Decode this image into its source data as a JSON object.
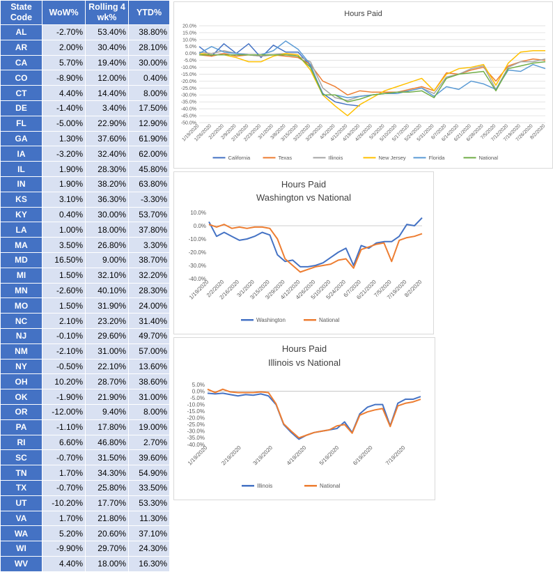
{
  "table": {
    "headers": [
      "State Code",
      "WoW%",
      "Rolling 4 wk%",
      "YTD%"
    ],
    "header_lines": [
      [
        "State",
        "Code"
      ],
      [
        "WoW%"
      ],
      [
        "Rolling 4",
        "wk%"
      ],
      [
        "YTD%"
      ]
    ],
    "rows": [
      [
        "AL",
        "-2.70%",
        "53.40%",
        "38.80%"
      ],
      [
        "AR",
        "2.00%",
        "30.40%",
        "28.10%"
      ],
      [
        "CA",
        "5.70%",
        "19.40%",
        "30.00%"
      ],
      [
        "CO",
        "-8.90%",
        "12.00%",
        "0.40%"
      ],
      [
        "CT",
        "4.40%",
        "14.40%",
        "8.00%"
      ],
      [
        "DE",
        "-1.40%",
        "3.40%",
        "17.50%"
      ],
      [
        "FL",
        "-5.00%",
        "22.90%",
        "12.90%"
      ],
      [
        "GA",
        "1.30%",
        "37.60%",
        "61.90%"
      ],
      [
        "IA",
        "-3.20%",
        "32.40%",
        "62.00%"
      ],
      [
        "IL",
        "1.90%",
        "28.30%",
        "45.80%"
      ],
      [
        "IN",
        "1.90%",
        "38.20%",
        "63.80%"
      ],
      [
        "KS",
        "3.10%",
        "36.30%",
        "-3.30%"
      ],
      [
        "KY",
        "0.40%",
        "30.00%",
        "53.70%"
      ],
      [
        "LA",
        "1.00%",
        "18.00%",
        "37.80%"
      ],
      [
        "MA",
        "3.50%",
        "26.80%",
        "3.30%"
      ],
      [
        "MD",
        "16.50%",
        "9.00%",
        "38.70%"
      ],
      [
        "MI",
        "1.50%",
        "32.10%",
        "32.20%"
      ],
      [
        "MN",
        "-2.60%",
        "40.10%",
        "28.30%"
      ],
      [
        "MO",
        "1.50%",
        "31.90%",
        "24.00%"
      ],
      [
        "NC",
        "2.10%",
        "23.20%",
        "31.40%"
      ],
      [
        "NJ",
        "-0.10%",
        "29.60%",
        "49.70%"
      ],
      [
        "NM",
        "-2.10%",
        "31.00%",
        "57.00%"
      ],
      [
        "NY",
        "-0.50%",
        "22.10%",
        "13.60%"
      ],
      [
        "OH",
        "10.20%",
        "28.70%",
        "38.60%"
      ],
      [
        "OK",
        "-1.90%",
        "21.90%",
        "31.00%"
      ],
      [
        "OR",
        "-12.00%",
        "9.40%",
        "8.00%"
      ],
      [
        "PA",
        "-1.10%",
        "17.80%",
        "19.00%"
      ],
      [
        "RI",
        "6.60%",
        "46.80%",
        "2.70%"
      ],
      [
        "SC",
        "-0.70%",
        "31.50%",
        "39.60%"
      ],
      [
        "TN",
        "1.70%",
        "34.30%",
        "54.90%"
      ],
      [
        "TX",
        "-0.70%",
        "25.80%",
        "33.50%"
      ],
      [
        "UT",
        "-10.20%",
        "17.70%",
        "53.30%"
      ],
      [
        "VA",
        "1.70%",
        "21.80%",
        "11.30%"
      ],
      [
        "WA",
        "5.20%",
        "20.60%",
        "37.10%"
      ],
      [
        "WI",
        "-9.90%",
        "29.70%",
        "24.30%"
      ],
      [
        "WV",
        "4.40%",
        "18.00%",
        "16.30%"
      ]
    ]
  },
  "chart_data": [
    {
      "type": "line",
      "title": "Hours Paid",
      "x": [
        "1/19/2020",
        "1/26/2020",
        "2/2/2020",
        "2/9/2020",
        "2/16/2020",
        "2/23/2020",
        "3/1/2020",
        "3/8/2020",
        "3/15/2020",
        "3/22/2020",
        "3/29/2020",
        "4/5/2020",
        "4/12/2020",
        "4/19/2020",
        "4/26/2020",
        "5/3/2020",
        "5/10/2020",
        "5/17/2020",
        "5/24/2020",
        "5/31/2020",
        "6/7/2020",
        "6/14/2020",
        "6/21/2020",
        "6/28/2020",
        "7/5/2020",
        "7/12/2020",
        "7/19/2020",
        "7/26/2020",
        "8/2/2020"
      ],
      "xticks": [
        "1/19/2020",
        "1/26/2020",
        "2/2/2020",
        "2/9/2020",
        "2/16/2020",
        "2/23/2020",
        "3/1/2020",
        "3/8/2020",
        "3/15/2020",
        "3/22/2020",
        "3/29/2020",
        "4/5/2020",
        "4/12/2020",
        "4/19/2020",
        "4/26/2020",
        "5/3/2020",
        "5/10/2020",
        "5/17/2020",
        "5/24/2020",
        "5/31/2020",
        "6/7/2020",
        "6/14/2020",
        "6/21/2020",
        "6/28/2020",
        "7/5/2020",
        "7/12/2020",
        "7/19/2020",
        "7/26/2020",
        "8/2/2020"
      ],
      "ylim": [
        -50,
        20
      ],
      "yticks": [
        20,
        15,
        10,
        5,
        0,
        -5,
        -10,
        -15,
        -20,
        -25,
        -30,
        -35,
        -40,
        -45,
        -50
      ],
      "ytick_labels": [
        "20.0%",
        "15.0%",
        "10.0%",
        "5.0%",
        "0.0%",
        "-5.0%",
        "-10.0%",
        "-15.0%",
        "-20.0%",
        "-25.0%",
        "-30.0%",
        "-35.0%",
        "-40.0%",
        "-45.0%",
        "-50.0%"
      ],
      "grid": true,
      "legend": "bottom",
      "series": [
        {
          "name": "California",
          "color": "#4472c4",
          "values": [
            5,
            -2,
            7,
            0,
            7,
            -3,
            6,
            1,
            1,
            -9,
            -29,
            -35,
            -37,
            -38,
            null,
            null,
            null,
            null,
            null,
            null,
            null,
            null,
            null,
            null,
            null,
            null,
            null,
            null,
            null
          ]
        },
        {
          "name": "Texas",
          "color": "#ed7d31",
          "values": [
            -1,
            -2,
            0,
            -2,
            -1,
            -2,
            -1,
            -2,
            -3,
            -8,
            -20,
            -24,
            -30,
            -27,
            -28,
            -28,
            -28,
            -26,
            -24,
            -27,
            -14,
            -15,
            -12,
            -10,
            -20,
            -9,
            -6,
            -4,
            -5
          ]
        },
        {
          "name": "Illinois",
          "color": "#a5a5a5",
          "values": [
            1,
            0,
            2,
            0,
            -1,
            -2,
            -1,
            0,
            -2,
            -6,
            -25,
            -32,
            -34,
            -31,
            -30,
            -29,
            -28,
            -27,
            -25,
            -29,
            -17,
            -15,
            -11,
            -9,
            -26,
            -10,
            -6,
            -6,
            -4
          ]
        },
        {
          "name": "New Jersey",
          "color": "#ffc000",
          "values": [
            0,
            -1,
            -1,
            -3,
            -6,
            -6,
            -2,
            0,
            -1,
            -12,
            -30,
            -38,
            -45,
            -37,
            -32,
            -27,
            -24,
            -21,
            -18,
            -27,
            -15,
            -11,
            -10,
            -8,
            -23,
            -7,
            1,
            2,
            2
          ]
        },
        {
          "name": "Florida",
          "color": "#5b9bd5",
          "values": [
            0,
            5,
            1,
            0,
            -1,
            -1,
            2,
            9,
            3,
            -8,
            -30,
            -30,
            -32,
            -31,
            -30,
            -29,
            -29,
            -27,
            -25,
            -31,
            -24,
            -26,
            -20,
            -22,
            -26,
            -12,
            -13,
            -8,
            -11
          ]
        },
        {
          "name": "National",
          "color": "#70ad47",
          "values": [
            -1,
            -1,
            -1,
            -1,
            -1,
            -1,
            -1,
            -1,
            -2,
            -10,
            -30,
            -30,
            -35,
            -33,
            -30,
            -29,
            -28,
            -28,
            -27,
            -32,
            -18,
            -15,
            -14,
            -13,
            -27,
            -11,
            -9,
            -7,
            -6
          ]
        }
      ]
    },
    {
      "type": "line",
      "title": "Hours Paid",
      "subtitle": "Washington vs National",
      "x": [
        "1/19/2020",
        "1/26/2020",
        "2/2/2020",
        "2/9/2020",
        "2/16/2020",
        "2/23/2020",
        "3/1/2020",
        "3/8/2020",
        "3/15/2020",
        "3/22/2020",
        "3/29/2020",
        "4/5/2020",
        "4/12/2020",
        "4/19/2020",
        "4/26/2020",
        "5/3/2020",
        "5/10/2020",
        "5/17/2020",
        "5/24/2020",
        "5/31/2020",
        "6/7/2020",
        "6/14/2020",
        "6/21/2020",
        "6/28/2020",
        "7/5/2020",
        "7/12/2020",
        "7/19/2020",
        "7/26/2020",
        "8/2/2020"
      ],
      "xticks": [
        "1/19/2020",
        "2/2/2020",
        "2/16/2020",
        "3/1/2020",
        "3/15/2020",
        "3/29/2020",
        "4/12/2020",
        "4/26/2020",
        "5/10/2020",
        "5/24/2020",
        "6/7/2020",
        "6/21/2020",
        "7/5/2020",
        "7/19/2020",
        "8/2/2020"
      ],
      "ylim": [
        -40,
        10
      ],
      "yticks": [
        10,
        0,
        -10,
        -20,
        -30,
        -40
      ],
      "ytick_labels": [
        "10.0%",
        "0.0%",
        "-10.0%",
        "-20.0%",
        "-30.0%",
        "-40.0%"
      ],
      "grid": false,
      "legend": "bottom",
      "series": [
        {
          "name": "Washington",
          "color": "#4472c4",
          "values": [
            3,
            -8,
            -5,
            -8,
            -11,
            -10,
            -8,
            -5,
            -7,
            -22,
            -27,
            -26,
            -31,
            -31,
            -30,
            -28,
            -24,
            -20,
            -17,
            -30,
            -15,
            -17,
            -13,
            -12,
            -12,
            -8,
            1,
            0,
            6
          ]
        },
        {
          "name": "National",
          "color": "#ed7d31",
          "values": [
            1,
            -1,
            1,
            -2,
            -1,
            -2,
            -1,
            -1,
            -2,
            -10,
            -25,
            -30,
            -35,
            -33,
            -31,
            -30,
            -29,
            -26,
            -25,
            -32,
            -18,
            -16,
            -14,
            -13,
            -27,
            -11,
            -9,
            -8,
            -6
          ]
        }
      ]
    },
    {
      "type": "line",
      "title": "Hours Paid",
      "subtitle": "Illinois vs National",
      "x": [
        "1/19/2020",
        "1/26/2020",
        "2/2/2020",
        "2/9/2020",
        "2/16/2020",
        "2/23/2020",
        "3/1/2020",
        "3/8/2020",
        "3/15/2020",
        "3/22/2020",
        "3/29/2020",
        "4/5/2020",
        "4/12/2020",
        "4/19/2020",
        "4/26/2020",
        "5/3/2020",
        "5/10/2020",
        "5/17/2020",
        "5/24/2020",
        "5/31/2020",
        "6/7/2020",
        "6/14/2020",
        "6/21/2020",
        "6/28/2020",
        "7/5/2020",
        "7/12/2020",
        "7/19/2020",
        "7/26/2020",
        "8/2/2020"
      ],
      "xticks": [
        "1/19/2020",
        "2/19/2020",
        "3/19/2020",
        "4/19/2020",
        "5/19/2020",
        "6/19/2020",
        "7/19/2020"
      ],
      "xtick_positions": [
        0,
        4.43,
        8.57,
        13,
        17.29,
        21.71,
        26
      ],
      "ylim": [
        -40,
        5
      ],
      "yticks": [
        5,
        0,
        -5,
        -10,
        -15,
        -20,
        -25,
        -30,
        -35,
        -40
      ],
      "ytick_labels": [
        "5.0%",
        "0.0%",
        "-5.0%",
        "-10.0%",
        "-15.0%",
        "-20.0%",
        "-25.0%",
        "-30.0%",
        "-35.0%",
        "-40.0%"
      ],
      "grid": false,
      "legend": "bottom",
      "series": [
        {
          "name": "Illinois",
          "color": "#4472c4",
          "values": [
            -1.5,
            -2,
            -1.5,
            -2.5,
            -3.5,
            -2.5,
            -3,
            -2,
            -3.5,
            -10,
            -25,
            -31,
            -36,
            -33,
            -31,
            -30,
            -29,
            -28,
            -23,
            -31,
            -17,
            -12,
            -10,
            -10,
            -26,
            -9,
            -6,
            -6,
            -4
          ]
        },
        {
          "name": "National",
          "color": "#ed7d31",
          "values": [
            1.5,
            -1,
            1.5,
            -0.5,
            -1,
            -1,
            -1,
            -0.5,
            -1,
            -9.5,
            -24.5,
            -30,
            -35,
            -33,
            -31,
            -30,
            -29,
            -26,
            -25,
            -31.5,
            -18,
            -15.5,
            -14,
            -13,
            -26.5,
            -11,
            -9,
            -8,
            -6
          ]
        }
      ]
    }
  ]
}
